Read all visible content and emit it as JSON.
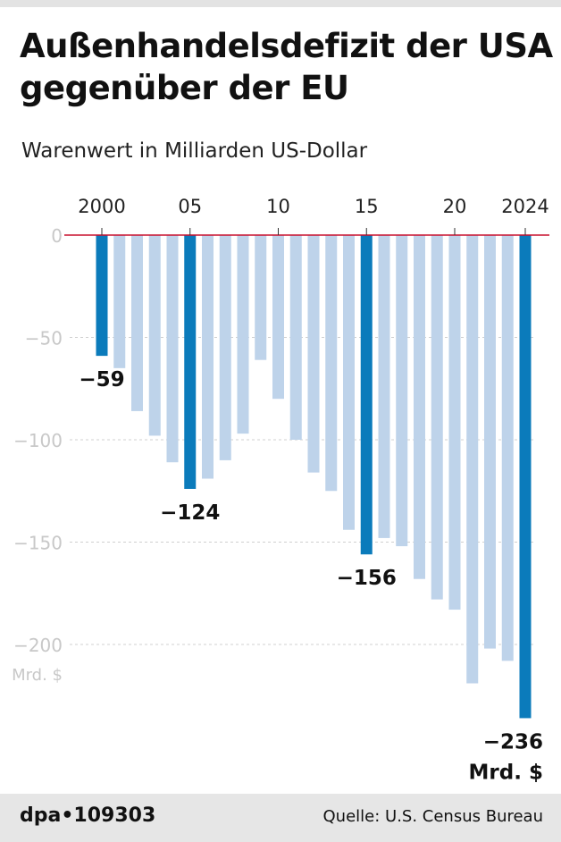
{
  "title": "Außenhandelsdefizit der USA gegenüber der EU",
  "subtitle": "Warenwert in Milliarden US-Dollar",
  "footer": {
    "agency": "dpa•109303",
    "source": "Quelle: U.S. Census Bureau"
  },
  "colors": {
    "highlight": "#0b7bbb",
    "normal": "#bed3ea",
    "zero_line": "#c8102e",
    "grid_label": "#c8c8c8"
  },
  "chart_data": {
    "type": "bar",
    "title": "Außenhandelsdefizit der USA gegenüber der EU",
    "subtitle": "Warenwert in Milliarden US-Dollar",
    "categories": [
      2000,
      2001,
      2002,
      2003,
      2004,
      2005,
      2006,
      2007,
      2008,
      2009,
      2010,
      2011,
      2012,
      2013,
      2014,
      2015,
      2016,
      2017,
      2018,
      2019,
      2020,
      2021,
      2022,
      2023,
      2024
    ],
    "values": [
      -59,
      -65,
      -86,
      -98,
      -111,
      -124,
      -119,
      -110,
      -97,
      -61,
      -80,
      -100,
      -116,
      -125,
      -144,
      -156,
      -148,
      -152,
      -168,
      -178,
      -183,
      -219,
      -202,
      -208,
      -236
    ],
    "highlighted": [
      2000,
      2005,
      2015,
      2024
    ],
    "x_tick_labels": [
      {
        "year": 2000,
        "label": "2000"
      },
      {
        "year": 2005,
        "label": "05"
      },
      {
        "year": 2010,
        "label": "10"
      },
      {
        "year": 2015,
        "label": "15"
      },
      {
        "year": 2020,
        "label": "20"
      },
      {
        "year": 2024,
        "label": "2024"
      }
    ],
    "y_ticks": [
      0,
      -50,
      -100,
      -150,
      -200
    ],
    "y_tick_labels": [
      "0",
      "−50",
      "−100",
      "−150",
      "−200"
    ],
    "ylabel": "Mrd. $",
    "ylim": [
      -240,
      0
    ],
    "data_labels": [
      {
        "year": 2000,
        "label": "−59"
      },
      {
        "year": 2005,
        "label": "−124"
      },
      {
        "year": 2015,
        "label": "−156"
      },
      {
        "year": 2024,
        "label": "−236"
      }
    ],
    "last_unit": "Mrd. $",
    "grid": true
  }
}
